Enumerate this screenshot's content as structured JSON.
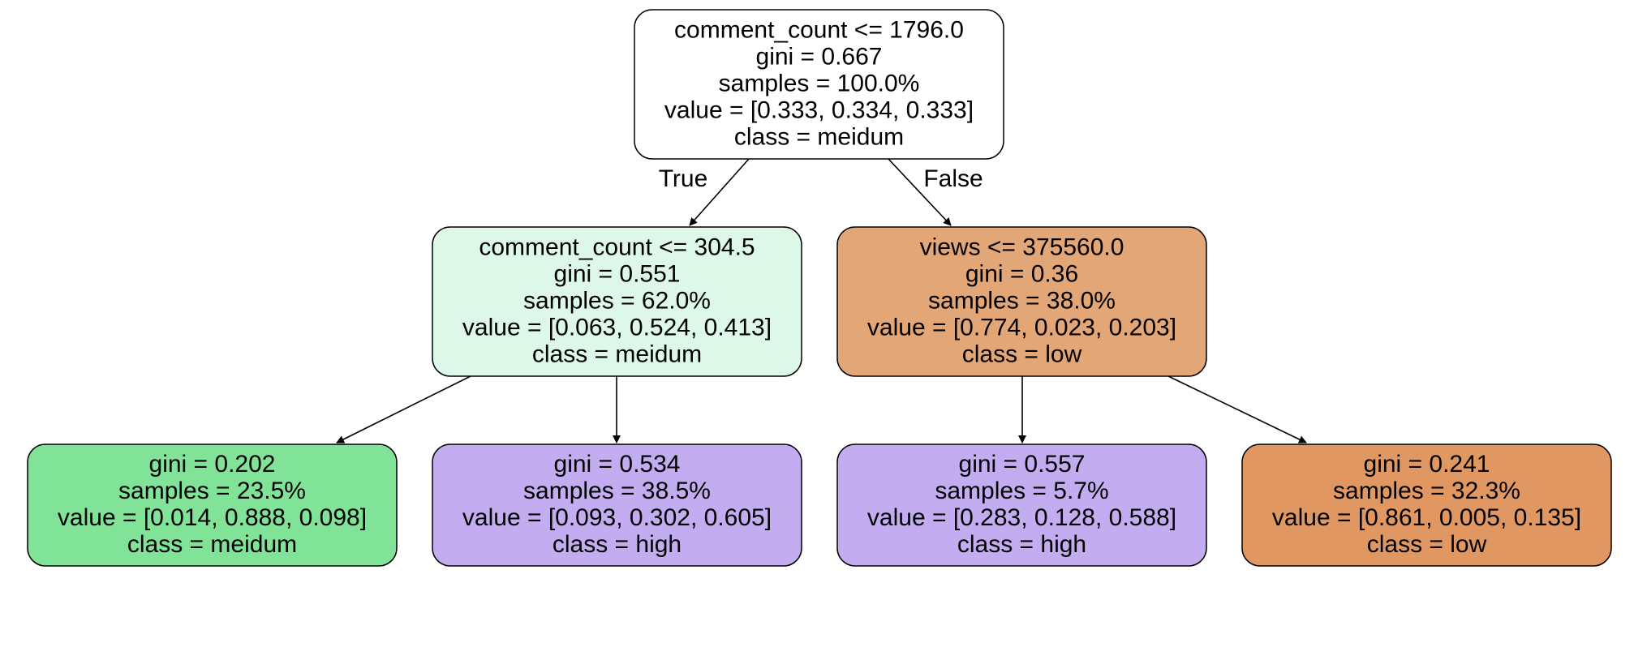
{
  "tree": {
    "nodes": [
      {
        "id": "root",
        "fill": "#ffffff",
        "lines": [
          "comment_count <= 1796.0",
          "gini = 0.667",
          "samples = 100.0%",
          "value = [0.333, 0.334, 0.333]",
          "class = meidum"
        ]
      },
      {
        "id": "left",
        "fill": "#ddf8e9",
        "lines": [
          "comment_count <= 304.5",
          "gini = 0.551",
          "samples = 62.0%",
          "value = [0.063, 0.524, 0.413]",
          "class = meidum"
        ]
      },
      {
        "id": "right",
        "fill": "#e3a677",
        "lines": [
          "views <= 375560.0",
          "gini = 0.36",
          "samples = 38.0%",
          "value = [0.774, 0.023, 0.203]",
          "class = low"
        ]
      },
      {
        "id": "leaf-1",
        "fill": "#80e398",
        "lines": [
          "gini = 0.202",
          "samples = 23.5%",
          "value = [0.014, 0.888, 0.098]",
          "class = meidum"
        ]
      },
      {
        "id": "leaf-2",
        "fill": "#c3acf0",
        "lines": [
          "gini = 0.534",
          "samples = 38.5%",
          "value = [0.093, 0.302, 0.605]",
          "class = high"
        ]
      },
      {
        "id": "leaf-3",
        "fill": "#c4acf0",
        "lines": [
          "gini = 0.557",
          "samples = 5.7%",
          "value = [0.283, 0.128, 0.588]",
          "class = high"
        ]
      },
      {
        "id": "leaf-4",
        "fill": "#e09762",
        "lines": [
          "gini = 0.241",
          "samples = 32.3%",
          "value = [0.861, 0.005, 0.135]",
          "class = low"
        ]
      }
    ],
    "edges": [
      {
        "from": "root",
        "to": "left",
        "label": "True"
      },
      {
        "from": "root",
        "to": "right",
        "label": "False"
      },
      {
        "from": "left",
        "to": "leaf-1",
        "label": ""
      },
      {
        "from": "left",
        "to": "leaf-2",
        "label": ""
      },
      {
        "from": "right",
        "to": "leaf-3",
        "label": ""
      },
      {
        "from": "right",
        "to": "leaf-4",
        "label": ""
      }
    ]
  }
}
